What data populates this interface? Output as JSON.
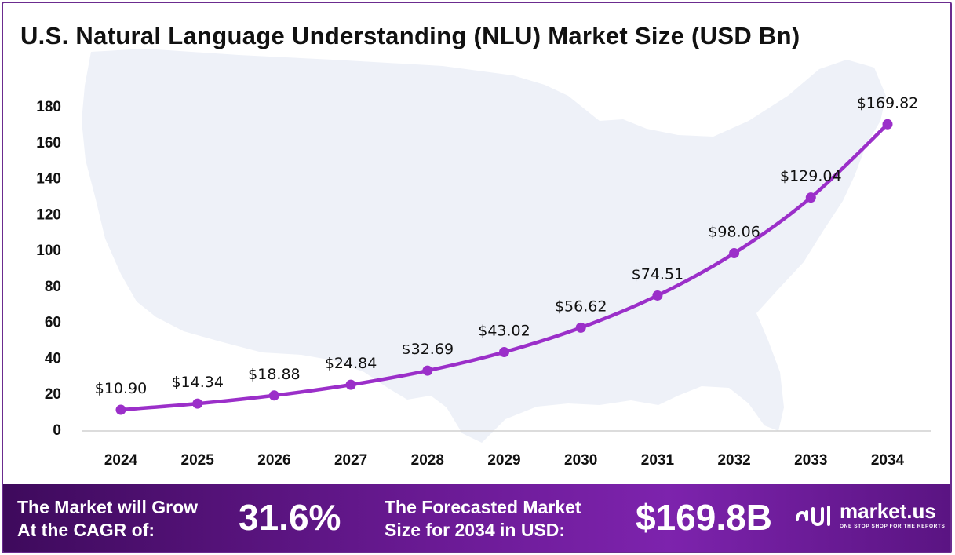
{
  "title": "U.S. Natural Language Understanding (NLU) Market Size (USD Bn)",
  "chart_data": {
    "type": "line",
    "title": "U.S. Natural Language Understanding (NLU) Market Size (USD Bn)",
    "xlabel": "",
    "ylabel": "",
    "categories": [
      "2024",
      "2025",
      "2026",
      "2027",
      "2028",
      "2029",
      "2030",
      "2031",
      "2032",
      "2033",
      "2034"
    ],
    "values": [
      10.9,
      14.34,
      18.88,
      24.84,
      32.69,
      43.02,
      56.62,
      74.51,
      98.06,
      129.04,
      169.82
    ],
    "data_labels": [
      "$10.90",
      "$14.34",
      "$18.88",
      "$24.84",
      "$32.69",
      "$43.02",
      "$56.62",
      "$74.51",
      "$98.06",
      "$129.04",
      "$169.82"
    ],
    "y_ticks": [
      "0",
      "20",
      "40",
      "60",
      "80",
      "100",
      "120",
      "140",
      "160",
      "180"
    ],
    "ylim": [
      0,
      180
    ],
    "grid": false,
    "legend": "none",
    "line_color": "#9b2fc9",
    "background_image": "U.S. map silhouette"
  },
  "footer": {
    "cagr_label_line1": "The Market will Grow",
    "cagr_label_line2": "At the CAGR of:",
    "cagr_value": "31.6%",
    "forecast_label_line1": "The Forecasted Market",
    "forecast_label_line2": "Size for 2034 in USD:",
    "forecast_value": "$169.8B",
    "brand_name": "market.us",
    "brand_tagline": "ONE STOP SHOP FOR THE REPORTS",
    "brand_icon": "market-us-logo-icon"
  },
  "colors": {
    "accent": "#9b2fc9",
    "footer_dark": "#3e0a5c",
    "footer_light": "#7d23ad",
    "border": "#6b2c8f",
    "map_fill": "#eef1f8"
  }
}
